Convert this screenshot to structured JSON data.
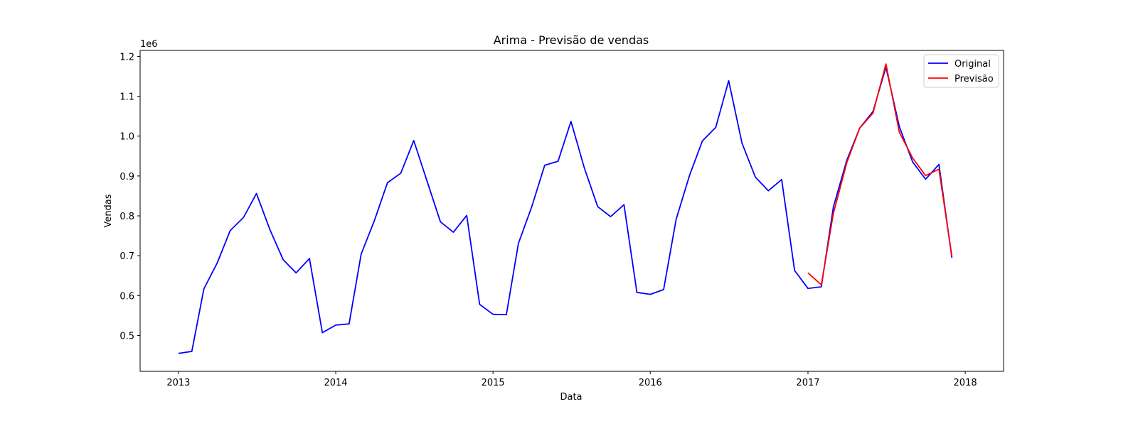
{
  "chart_data": {
    "type": "line",
    "title": "Arima - Previsão de vendas",
    "xlabel": "Data",
    "ylabel": "Vendas",
    "y_offset_label": "1e6",
    "x_ticks": [
      "2013",
      "2014",
      "2015",
      "2016",
      "2017",
      "2018"
    ],
    "y_ticks": [
      "0.5",
      "0.6",
      "0.7",
      "0.8",
      "0.9",
      "1.0",
      "1.1",
      "1.2"
    ],
    "xlim": [
      "2012-10-04",
      "2018-03-31"
    ],
    "ylim": [
      0.41,
      1.215
    ],
    "grid": false,
    "legend_position": "top-right",
    "series": [
      {
        "name": "Original",
        "color": "#0000ff",
        "x": [
          "2013-01",
          "2013-02",
          "2013-03",
          "2013-04",
          "2013-05",
          "2013-06",
          "2013-07",
          "2013-08",
          "2013-09",
          "2013-10",
          "2013-11",
          "2013-12",
          "2014-01",
          "2014-02",
          "2014-03",
          "2014-04",
          "2014-05",
          "2014-06",
          "2014-07",
          "2014-08",
          "2014-09",
          "2014-10",
          "2014-11",
          "2014-12",
          "2015-01",
          "2015-02",
          "2015-03",
          "2015-04",
          "2015-05",
          "2015-06",
          "2015-07",
          "2015-08",
          "2015-09",
          "2015-10",
          "2015-11",
          "2015-12",
          "2016-01",
          "2016-02",
          "2016-03",
          "2016-04",
          "2016-05",
          "2016-06",
          "2016-07",
          "2016-08",
          "2016-09",
          "2016-10",
          "2016-11",
          "2016-12",
          "2017-01",
          "2017-02",
          "2017-03",
          "2017-04",
          "2017-05",
          "2017-06",
          "2017-07",
          "2017-08",
          "2017-09",
          "2017-10",
          "2017-11",
          "2017-12"
        ],
        "values": [
          0.455,
          0.46,
          0.617,
          0.682,
          0.763,
          0.796,
          0.856,
          0.766,
          0.69,
          0.657,
          0.693,
          0.507,
          0.526,
          0.529,
          0.704,
          0.789,
          0.883,
          0.907,
          0.989,
          0.887,
          0.785,
          0.759,
          0.801,
          0.578,
          0.553,
          0.552,
          0.731,
          0.823,
          0.927,
          0.937,
          1.037,
          0.92,
          0.823,
          0.798,
          0.828,
          0.608,
          0.603,
          0.615,
          0.791,
          0.901,
          0.988,
          1.022,
          1.139,
          0.982,
          0.897,
          0.863,
          0.891,
          0.663,
          0.618,
          0.622,
          0.822,
          0.939,
          1.02,
          1.062,
          1.173,
          1.024,
          0.935,
          0.892,
          0.929,
          0.695
        ]
      },
      {
        "name": "Previsão",
        "color": "#ff0000",
        "x": [
          "2017-01",
          "2017-02",
          "2017-03",
          "2017-04",
          "2017-05",
          "2017-06",
          "2017-07",
          "2017-08",
          "2017-09",
          "2017-10",
          "2017-11",
          "2017-12"
        ],
        "values": [
          0.657,
          0.627,
          0.806,
          0.933,
          1.02,
          1.058,
          1.181,
          1.01,
          0.945,
          0.901,
          0.917,
          0.699
        ]
      }
    ]
  }
}
